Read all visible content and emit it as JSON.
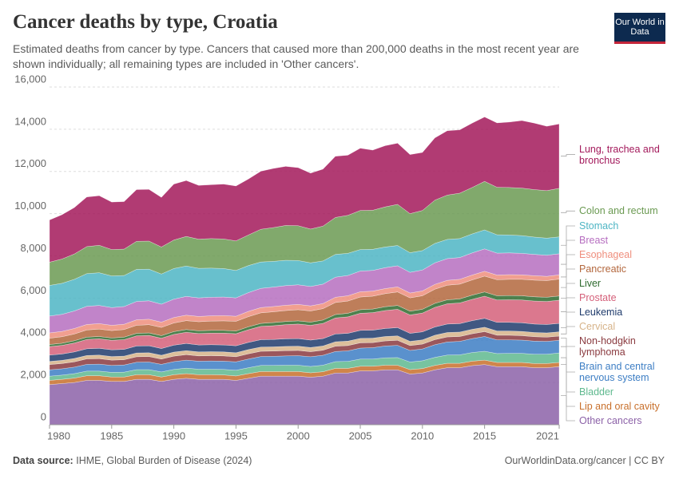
{
  "header": {
    "title": "Cancer deaths by type, Croatia",
    "subtitle": "Estimated deaths from cancer by type. Cancers that caused more than 200,000 deaths in the most recent year are shown individually; all remaining types are included in 'Other cancers'.",
    "logo": "Our World in Data"
  },
  "footer": {
    "source_label": "Data source:",
    "source": "IHME, Global Burden of Disease (2024)",
    "credit": "OurWorldinData.org/cancer | CC BY"
  },
  "chart_data": {
    "type": "stacked-area",
    "x": [
      1980,
      1981,
      1982,
      1983,
      1984,
      1985,
      1986,
      1987,
      1988,
      1989,
      1990,
      1991,
      1992,
      1993,
      1994,
      1995,
      1996,
      1997,
      1998,
      1999,
      2000,
      2001,
      2002,
      2003,
      2004,
      2005,
      2006,
      2007,
      2008,
      2009,
      2010,
      2011,
      2012,
      2013,
      2014,
      2015,
      2016,
      2017,
      2018,
      2019,
      2020,
      2021
    ],
    "xlim": [
      1980,
      2021
    ],
    "xticks": [
      1980,
      1985,
      1990,
      1995,
      2000,
      2005,
      2010,
      2015,
      2021
    ],
    "ylim": [
      0,
      16000
    ],
    "yticks": [
      0,
      {
        "value": 2000,
        "label": "2,000"
      },
      {
        "value": 4000,
        "label": "4,000"
      },
      {
        "value": 6000,
        "label": "6,000"
      },
      {
        "value": 8000,
        "label": "8,000"
      },
      {
        "value": 10000,
        "label": "10,000"
      },
      {
        "value": 12000,
        "label": "12,000"
      },
      {
        "value": 14000,
        "label": "14,000"
      },
      {
        "value": 16000,
        "label": "16,000"
      }
    ],
    "grid": true,
    "series": [
      {
        "name": "Other cancers",
        "color": "#8c62a8",
        "values": [
          1900,
          1950,
          2000,
          2100,
          2100,
          2050,
          2050,
          2150,
          2150,
          2050,
          2150,
          2200,
          2150,
          2150,
          2150,
          2100,
          2200,
          2300,
          2300,
          2300,
          2300,
          2250,
          2300,
          2450,
          2450,
          2550,
          2550,
          2600,
          2600,
          2400,
          2450,
          2600,
          2700,
          2700,
          2800,
          2850,
          2750,
          2750,
          2750,
          2700,
          2700,
          2750
        ]
      },
      {
        "name": "Lip and oral cavity",
        "color": "#c8702c",
        "values": [
          200,
          200,
          210,
          220,
          220,
          210,
          210,
          220,
          220,
          210,
          220,
          220,
          220,
          220,
          210,
          210,
          220,
          220,
          220,
          220,
          220,
          210,
          210,
          220,
          220,
          220,
          220,
          220,
          220,
          210,
          210,
          210,
          210,
          210,
          210,
          210,
          200,
          200,
          200,
          200,
          200,
          200
        ]
      },
      {
        "name": "Bladder",
        "color": "#5fb98f",
        "values": [
          200,
          200,
          210,
          220,
          220,
          220,
          230,
          240,
          240,
          240,
          250,
          260,
          260,
          260,
          260,
          270,
          280,
          290,
          290,
          300,
          300,
          300,
          310,
          320,
          330,
          340,
          340,
          350,
          360,
          360,
          370,
          380,
          390,
          400,
          410,
          420,
          420,
          430,
          430,
          440,
          440,
          450
        ]
      },
      {
        "name": "Brain and central nervous system",
        "color": "#3d7ec4",
        "values": [
          300,
          300,
          310,
          320,
          330,
          330,
          340,
          350,
          360,
          360,
          370,
          380,
          380,
          390,
          390,
          400,
          410,
          420,
          430,
          440,
          450,
          460,
          470,
          480,
          500,
          520,
          540,
          560,
          580,
          550,
          560,
          600,
          620,
          640,
          660,
          700,
          650,
          640,
          630,
          620,
          610,
          600
        ]
      },
      {
        "name": "Non-hodgkin lymphoma",
        "color": "#8a3a3f",
        "values": [
          250,
          250,
          250,
          260,
          260,
          250,
          250,
          260,
          260,
          250,
          260,
          260,
          250,
          250,
          250,
          240,
          250,
          250,
          250,
          250,
          250,
          240,
          240,
          250,
          250,
          250,
          240,
          240,
          240,
          230,
          230,
          240,
          240,
          230,
          230,
          230,
          220,
          220,
          210,
          210,
          200,
          200
        ]
      },
      {
        "name": "Cervical",
        "color": "#d7b48a",
        "values": [
          150,
          150,
          160,
          160,
          170,
          170,
          170,
          180,
          180,
          180,
          190,
          190,
          190,
          190,
          190,
          190,
          200,
          200,
          200,
          200,
          200,
          200,
          200,
          210,
          210,
          210,
          210,
          210,
          210,
          200,
          200,
          210,
          210,
          210,
          210,
          210,
          200,
          200,
          200,
          200,
          200,
          200
        ]
      },
      {
        "name": "Leukemia",
        "color": "#1f3b6c",
        "values": [
          300,
          300,
          310,
          320,
          320,
          320,
          320,
          330,
          330,
          320,
          330,
          340,
          330,
          330,
          330,
          330,
          340,
          350,
          350,
          360,
          360,
          350,
          350,
          370,
          370,
          380,
          380,
          380,
          390,
          380,
          380,
          390,
          400,
          400,
          410,
          420,
          410,
          410,
          410,
          400,
          400,
          400
        ]
      },
      {
        "name": "Prostate",
        "color": "#d5607a",
        "values": [
          400,
          410,
          420,
          440,
          450,
          450,
          460,
          480,
          490,
          490,
          510,
          530,
          540,
          550,
          560,
          570,
          600,
          630,
          650,
          670,
          690,
          700,
          720,
          760,
          780,
          810,
          830,
          850,
          870,
          870,
          890,
          930,
          960,
          980,
          1010,
          1050,
          1060,
          1070,
          1080,
          1090,
          1090,
          1100
        ]
      },
      {
        "name": "Liver",
        "color": "#2f6b2f",
        "values": [
          100,
          100,
          110,
          110,
          110,
          110,
          120,
          120,
          120,
          120,
          130,
          130,
          130,
          130,
          130,
          130,
          140,
          140,
          150,
          150,
          150,
          150,
          160,
          160,
          170,
          170,
          170,
          180,
          180,
          180,
          180,
          190,
          190,
          190,
          200,
          200,
          200,
          200,
          200,
          200,
          200,
          200
        ]
      },
      {
        "name": "Pancreatic",
        "color": "#b3673d",
        "values": [
          300,
          310,
          320,
          340,
          350,
          350,
          360,
          380,
          390,
          390,
          410,
          420,
          430,
          440,
          450,
          460,
          480,
          500,
          510,
          520,
          530,
          530,
          540,
          570,
          580,
          600,
          610,
          620,
          640,
          630,
          640,
          670,
          690,
          700,
          720,
          750,
          760,
          770,
          780,
          790,
          790,
          800
        ]
      },
      {
        "name": "Esophageal",
        "color": "#ef8e7d",
        "values": [
          250,
          250,
          260,
          260,
          260,
          250,
          250,
          260,
          260,
          250,
          260,
          260,
          250,
          250,
          250,
          240,
          250,
          250,
          250,
          250,
          250,
          240,
          240,
          250,
          250,
          250,
          240,
          240,
          240,
          230,
          230,
          230,
          230,
          230,
          230,
          230,
          220,
          220,
          210,
          210,
          200,
          200
        ]
      },
      {
        "name": "Breast",
        "color": "#b66ec0",
        "values": [
          800,
          810,
          830,
          860,
          860,
          840,
          840,
          870,
          870,
          850,
          870,
          890,
          880,
          880,
          880,
          870,
          890,
          910,
          920,
          930,
          930,
          920,
          920,
          950,
          960,
          980,
          980,
          990,
          1000,
          980,
          990,
          1020,
          1030,
          1030,
          1050,
          1060,
          1040,
          1030,
          1020,
          1010,
          1000,
          1000
        ]
      },
      {
        "name": "Stomach",
        "color": "#4eb5c4",
        "values": [
          1450,
          1470,
          1500,
          1550,
          1550,
          1500,
          1470,
          1520,
          1500,
          1430,
          1450,
          1440,
          1400,
          1380,
          1350,
          1300,
          1280,
          1250,
          1220,
          1200,
          1150,
          1120,
          1100,
          1080,
          1050,
          1020,
          1000,
          980,
          960,
          930,
          920,
          920,
          910,
          900,
          900,
          900,
          870,
          850,
          840,
          820,
          810,
          800
        ]
      },
      {
        "name": "Colon and rectum",
        "color": "#6b9a52",
        "values": [
          1100,
          1150,
          1200,
          1280,
          1300,
          1250,
          1250,
          1330,
          1330,
          1280,
          1350,
          1400,
          1380,
          1400,
          1400,
          1400,
          1450,
          1550,
          1600,
          1650,
          1650,
          1600,
          1650,
          1750,
          1800,
          1850,
          1850,
          1900,
          1950,
          1850,
          1900,
          2050,
          2100,
          2150,
          2200,
          2300,
          2250,
          2250,
          2250,
          2250,
          2250,
          2300
        ]
      },
      {
        "name": "Lung, trachea and bronchus",
        "color": "#a3195b",
        "values": [
          2000,
          2100,
          2200,
          2350,
          2350,
          2250,
          2250,
          2450,
          2450,
          2350,
          2650,
          2650,
          2550,
          2550,
          2600,
          2600,
          2650,
          2750,
          2800,
          2800,
          2750,
          2650,
          2700,
          2900,
          2850,
          2950,
          2850,
          2900,
          2900,
          2800,
          2750,
          2950,
          3050,
          3000,
          3050,
          3050,
          3050,
          3100,
          3200,
          3150,
          3050,
          3050
        ]
      }
    ]
  }
}
